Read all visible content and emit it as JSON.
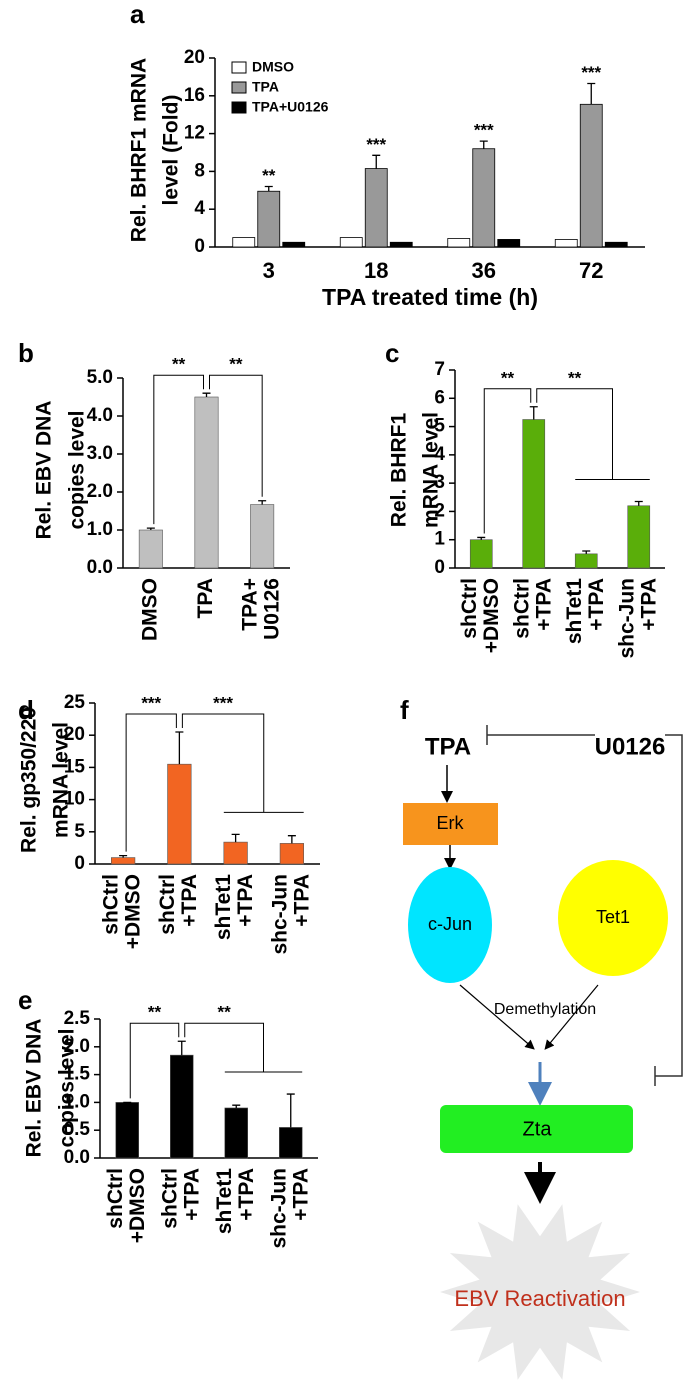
{
  "chart_data": [
    {
      "type": "grouped-bar",
      "panel": "a",
      "ylabel": [
        "Rel. BHRF1 mRNA",
        "level (Fold)"
      ],
      "xlabel": "TPA treated time (h)",
      "categories": [
        [
          "3"
        ],
        [
          "18"
        ],
        [
          "36"
        ],
        [
          "72"
        ]
      ],
      "series": [
        {
          "name": "DMSO",
          "color": "#ffffff",
          "values": [
            1.0,
            1.0,
            0.9,
            0.8
          ]
        },
        {
          "name": "TPA",
          "color": "#999999",
          "values": [
            5.9,
            8.3,
            10.4,
            15.1
          ],
          "errors": [
            0.5,
            1.4,
            0.8,
            2.2
          ]
        },
        {
          "name": "TPA+U0126",
          "color": "#000000",
          "values": [
            0.5,
            0.5,
            0.8,
            0.5
          ]
        }
      ],
      "significance": [
        "**",
        "***",
        "***",
        "***"
      ],
      "ylim": [
        0,
        20
      ],
      "yticks": [
        0,
        4,
        8,
        12,
        16,
        20
      ]
    },
    {
      "type": "bar",
      "panel": "b",
      "ylabel": [
        "Rel. EBV DNA",
        "copies level"
      ],
      "categories": [
        [
          "DMSO"
        ],
        [
          "TPA"
        ],
        [
          "TPA+",
          "U0126"
        ]
      ],
      "values": [
        1.0,
        4.5,
        1.67
      ],
      "errors": [
        0.05,
        0.1,
        0.1
      ],
      "color": "#bfbfbf",
      "annotations": [
        "**",
        "**"
      ],
      "ylim": [
        0,
        5
      ],
      "yticks": [
        {
          "value": 0,
          "label": "0.0"
        },
        {
          "value": 1,
          "label": "1.0"
        },
        {
          "value": 2,
          "label": "2.0"
        },
        {
          "value": 3,
          "label": "3.0"
        },
        {
          "value": 4,
          "label": "4.0"
        },
        {
          "value": 5,
          "label": "5.0"
        }
      ]
    },
    {
      "type": "bar",
      "panel": "c",
      "ylabel": [
        "Rel. BHRF1",
        "mRNA level"
      ],
      "categories": [
        [
          "shCtrl",
          "+DMSO"
        ],
        [
          "shCtrl",
          "+TPA"
        ],
        [
          "shTet1",
          "+TPA"
        ],
        [
          "shc-Jun",
          "+TPA"
        ]
      ],
      "values": [
        1.0,
        5.25,
        0.5,
        2.2
      ],
      "errors": [
        0.08,
        0.45,
        0.1,
        0.15
      ],
      "color": "#5aae0a",
      "annotations": [
        "**",
        "**"
      ],
      "ylim": [
        0,
        7
      ],
      "yticks": [
        0,
        1,
        2,
        3,
        4,
        5,
        6,
        7
      ]
    },
    {
      "type": "bar",
      "panel": "d",
      "ylabel": [
        "Rel. gp350/220",
        "mRNA level"
      ],
      "categories": [
        [
          "shCtrl",
          "+DMSO"
        ],
        [
          "shCtrl",
          "+TPA"
        ],
        [
          "shTet1",
          "+TPA"
        ],
        [
          "shc-Jun",
          "+TPA"
        ]
      ],
      "values": [
        1.0,
        15.5,
        3.4,
        3.2
      ],
      "errors": [
        0.3,
        5.0,
        1.2,
        1.2
      ],
      "color": "#f26522",
      "annotations": [
        "***",
        "***"
      ],
      "ylim": [
        0,
        25
      ],
      "yticks": [
        0,
        5,
        10,
        15,
        20,
        25
      ]
    },
    {
      "type": "bar",
      "panel": "e",
      "ylabel": [
        "Rel. EBV DNA",
        "copies level"
      ],
      "categories": [
        [
          "shCtrl",
          "+DMSO"
        ],
        [
          "shCtrl",
          "+TPA"
        ],
        [
          "shTet1",
          "+TPA"
        ],
        [
          "shc-Jun",
          "+TPA"
        ]
      ],
      "values": [
        1.0,
        1.85,
        0.9,
        0.55
      ],
      "errors": [
        0.0,
        0.25,
        0.05,
        0.6
      ],
      "color": "#000000",
      "annotations": [
        "**",
        "**"
      ],
      "ylim": [
        0,
        2.5
      ],
      "yticks": [
        {
          "value": 0,
          "label": "0.0"
        },
        {
          "value": 0.5,
          "label": "0.5"
        },
        {
          "value": 1,
          "label": "1.0"
        },
        {
          "value": 1.5,
          "label": "1.5"
        },
        {
          "value": 2,
          "label": "2.0"
        },
        {
          "value": 2.5,
          "label": "2.5"
        }
      ]
    }
  ],
  "diagram": {
    "panel": "f",
    "nodes": {
      "tpa": "TPA",
      "u0126": "U0126",
      "erk": "Erk",
      "cjun": "c-Jun",
      "tet1": "Tet1",
      "demethylation": "Demethylation",
      "zta": "Zta",
      "reactivation": "EBV Reactivation"
    }
  }
}
